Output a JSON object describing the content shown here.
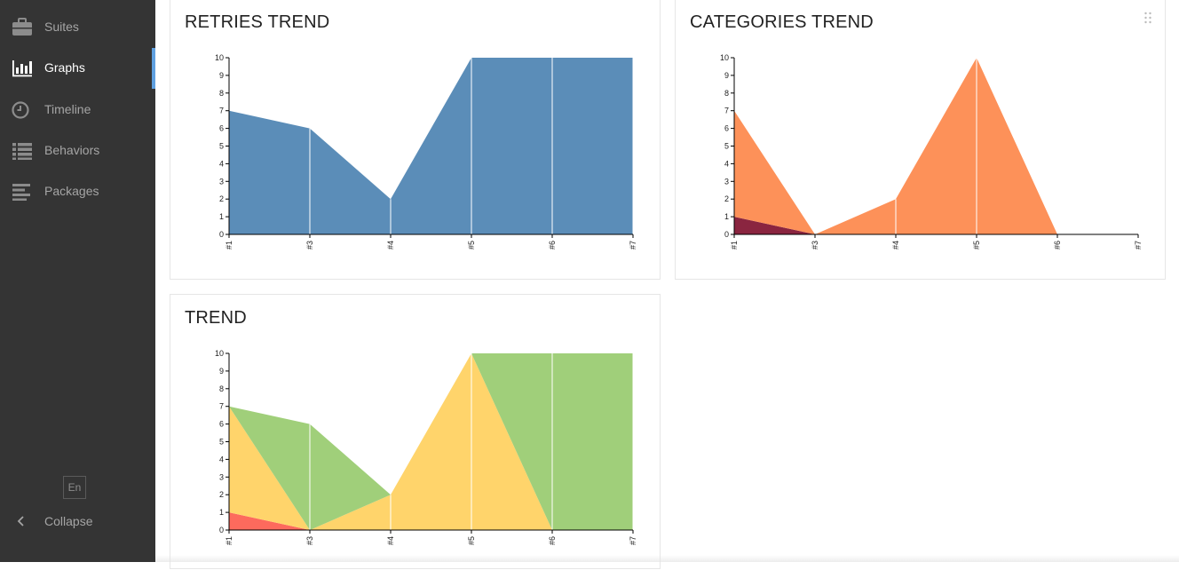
{
  "sidebar": {
    "items": [
      {
        "label": "Suites",
        "icon": "briefcase-icon",
        "active": false
      },
      {
        "label": "Graphs",
        "icon": "bar-chart-icon",
        "active": true
      },
      {
        "label": "Timeline",
        "icon": "clock-icon",
        "active": false
      },
      {
        "label": "Behaviors",
        "icon": "list-icon",
        "active": false
      },
      {
        "label": "Packages",
        "icon": "align-left-icon",
        "active": false
      }
    ],
    "language": "En",
    "collapse_label": "Collapse"
  },
  "colors": {
    "sidebar_bg": "#343434",
    "active_indicator": "#5fa0e0",
    "retries": "#5b8db8",
    "category_orange": "#fd9159",
    "category_dark": "#8a2540",
    "passed": "#a0cf7a",
    "broken": "#ffd46b",
    "failed": "#fd6a5d"
  },
  "chart_data": [
    {
      "id": "retries",
      "type": "area",
      "title": "RETRIES TREND",
      "categories": [
        "#1",
        "#3",
        "#4",
        "#5",
        "#6",
        "#7"
      ],
      "ylim": [
        0,
        10
      ],
      "yticks": [
        0,
        1,
        2,
        3,
        4,
        5,
        6,
        7,
        8,
        9,
        10
      ],
      "series": [
        {
          "values": [
            7,
            6,
            2,
            10,
            10,
            10
          ],
          "color": "#5b8db8"
        }
      ]
    },
    {
      "id": "categories",
      "type": "area",
      "title": "CATEGORIES TREND",
      "categories": [
        "#1",
        "#3",
        "#4",
        "#5",
        "#6",
        "#7"
      ],
      "ylim": [
        0,
        10
      ],
      "yticks": [
        0,
        1,
        2,
        3,
        4,
        5,
        6,
        7,
        8,
        9,
        10
      ],
      "stacked": true,
      "series": [
        {
          "values": [
            1,
            0,
            0,
            0,
            0,
            0
          ],
          "color": "#8a2540"
        },
        {
          "values": [
            6,
            0,
            2,
            10,
            0,
            0
          ],
          "color": "#fd9159"
        }
      ]
    },
    {
      "id": "trend",
      "type": "area",
      "title": "TREND",
      "categories": [
        "#1",
        "#3",
        "#4",
        "#5",
        "#6",
        "#7"
      ],
      "ylim": [
        0,
        10
      ],
      "yticks": [
        0,
        1,
        2,
        3,
        4,
        5,
        6,
        7,
        8,
        9,
        10
      ],
      "stacked": true,
      "series": [
        {
          "values": [
            1,
            0,
            0,
            0,
            0,
            0
          ],
          "color": "#fd6a5d"
        },
        {
          "values": [
            6,
            0,
            2,
            10,
            0,
            0
          ],
          "color": "#ffd46b"
        },
        {
          "values": [
            0,
            6,
            0,
            0,
            10,
            10
          ],
          "color": "#a0cf7a"
        }
      ]
    }
  ]
}
